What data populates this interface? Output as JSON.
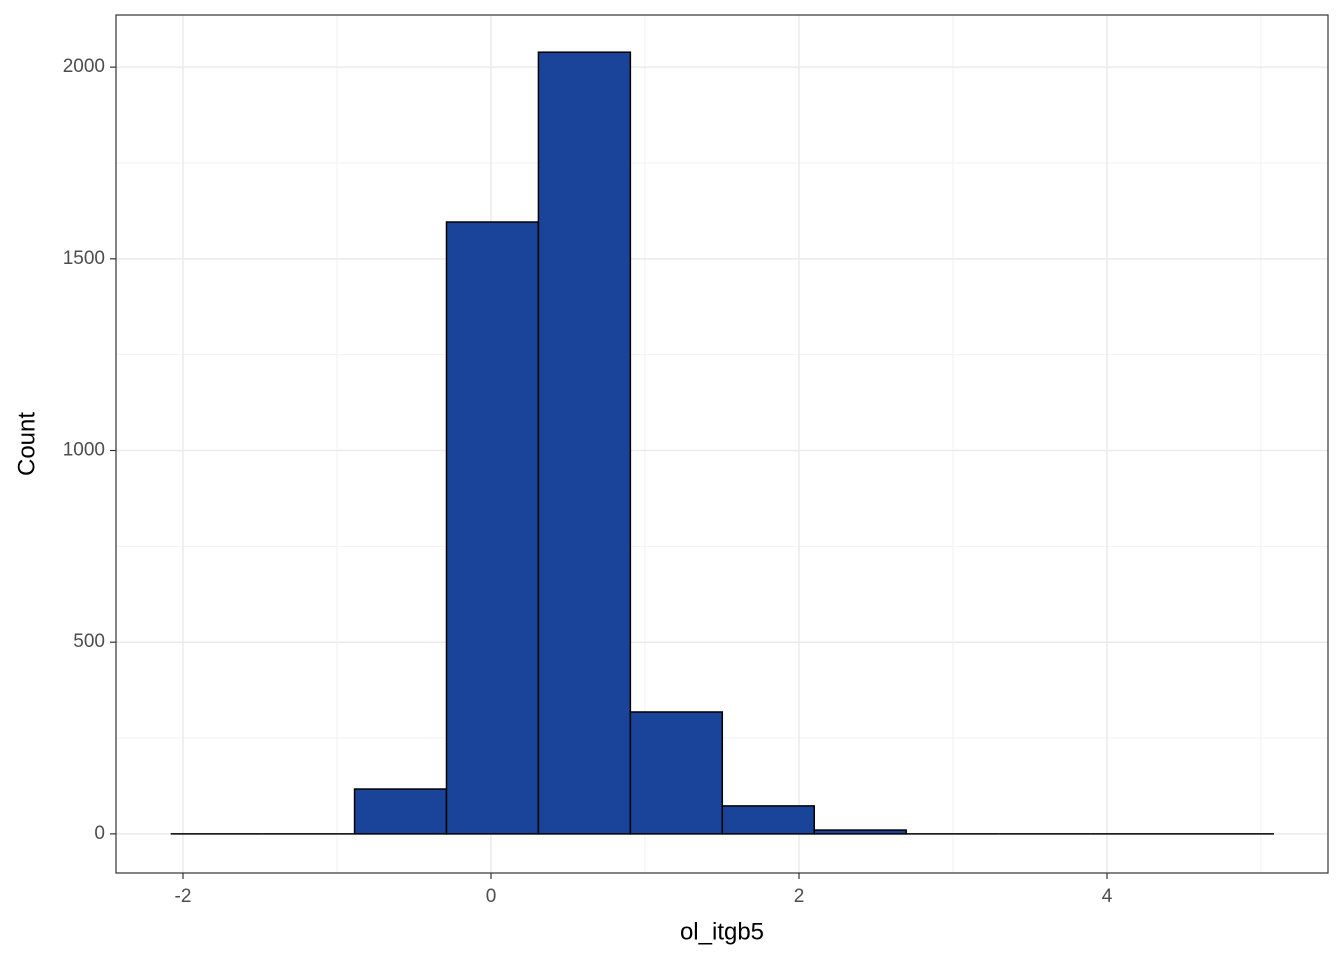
{
  "chart_data": {
    "type": "histogram",
    "x_label": "ol_itgb5",
    "y_label": "Count",
    "bins": [
      -2.08,
      -1.483,
      -0.886,
      -0.289,
      0.308,
      0.905,
      1.502,
      2.099,
      2.696,
      3.293,
      3.89,
      4.487,
      5.084
    ],
    "values": [
      0,
      0,
      117,
      1596,
      2039,
      318,
      73,
      10,
      0,
      0,
      0,
      0
    ],
    "color": "#1a4499",
    "edge_color": "#000000",
    "xlim": [
      -2.435,
      5.435
    ],
    "xticks": [
      -2,
      0,
      2,
      4
    ],
    "x_minor_ticks": [
      -1,
      1,
      3,
      5
    ],
    "ylim": [
      -102,
      2136
    ],
    "yticks": [
      0,
      500,
      1000,
      1500,
      2000
    ],
    "y_minor_ticks": [
      250,
      750,
      1250,
      1750
    ],
    "grid": true
  }
}
